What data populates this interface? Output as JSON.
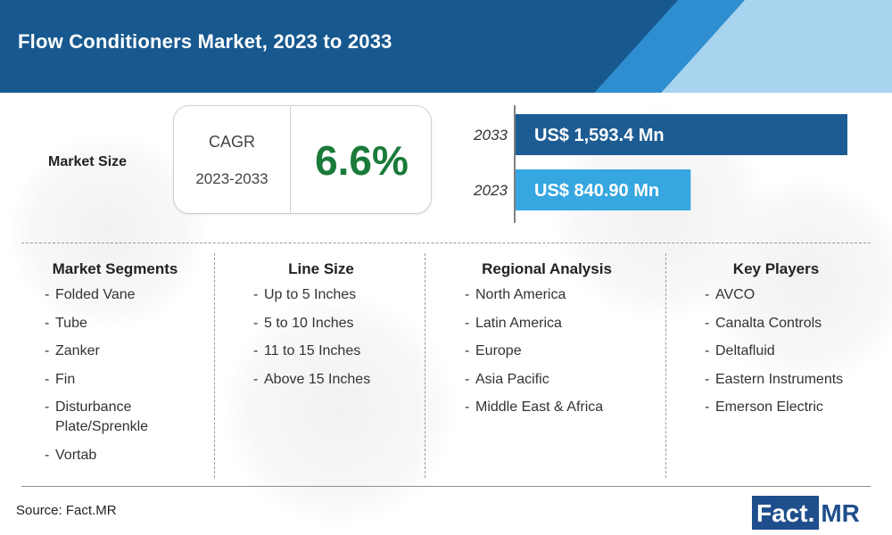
{
  "header": {
    "title": "Flow Conditioners Market, 2023 to 2033"
  },
  "market_size": {
    "label": "Market Size",
    "cagr_label": "CAGR",
    "cagr_period": "2023-2033",
    "cagr_value": "6.6%"
  },
  "chart_data": {
    "type": "bar",
    "orientation": "horizontal",
    "categories": [
      "2033",
      "2023"
    ],
    "values": [
      1593.4,
      840.9
    ],
    "value_labels": [
      "US$ 1,593.4 Mn",
      "US$ 840.90 Mn"
    ],
    "unit": "US$ Mn",
    "bar_colors": [
      "#1d5c93",
      "#36a7e1"
    ],
    "xlim": [
      0,
      1593.4
    ],
    "grid": false,
    "title": "",
    "xlabel": "",
    "ylabel": ""
  },
  "segments": [
    {
      "title": "Market Segments",
      "items": [
        "Folded Vane",
        "Tube",
        "Zanker",
        "Fin",
        "Disturbance Plate/Sprenkle",
        "Vortab"
      ]
    },
    {
      "title": "Line Size",
      "items": [
        "Up to 5 Inches",
        "5 to 10 Inches",
        "11 to 15 Inches",
        "Above 15 Inches"
      ]
    },
    {
      "title": "Regional Analysis",
      "items": [
        "North America",
        "Latin America",
        "Europe",
        "Asia Pacific",
        "Middle East & Africa"
      ]
    },
    {
      "title": "Key Players",
      "items": [
        "AVCO",
        "Canalta Controls",
        "Deltafluid",
        "Eastern Instruments",
        "Emerson Electric"
      ]
    }
  ],
  "footer": {
    "source": "Source: Fact.MR",
    "logo_fact": "Fact.",
    "logo_mr": "MR"
  },
  "colors": {
    "header_bg": "#17598f",
    "cagr_value": "#1a7a3a",
    "logo": "#1f4e8c"
  }
}
